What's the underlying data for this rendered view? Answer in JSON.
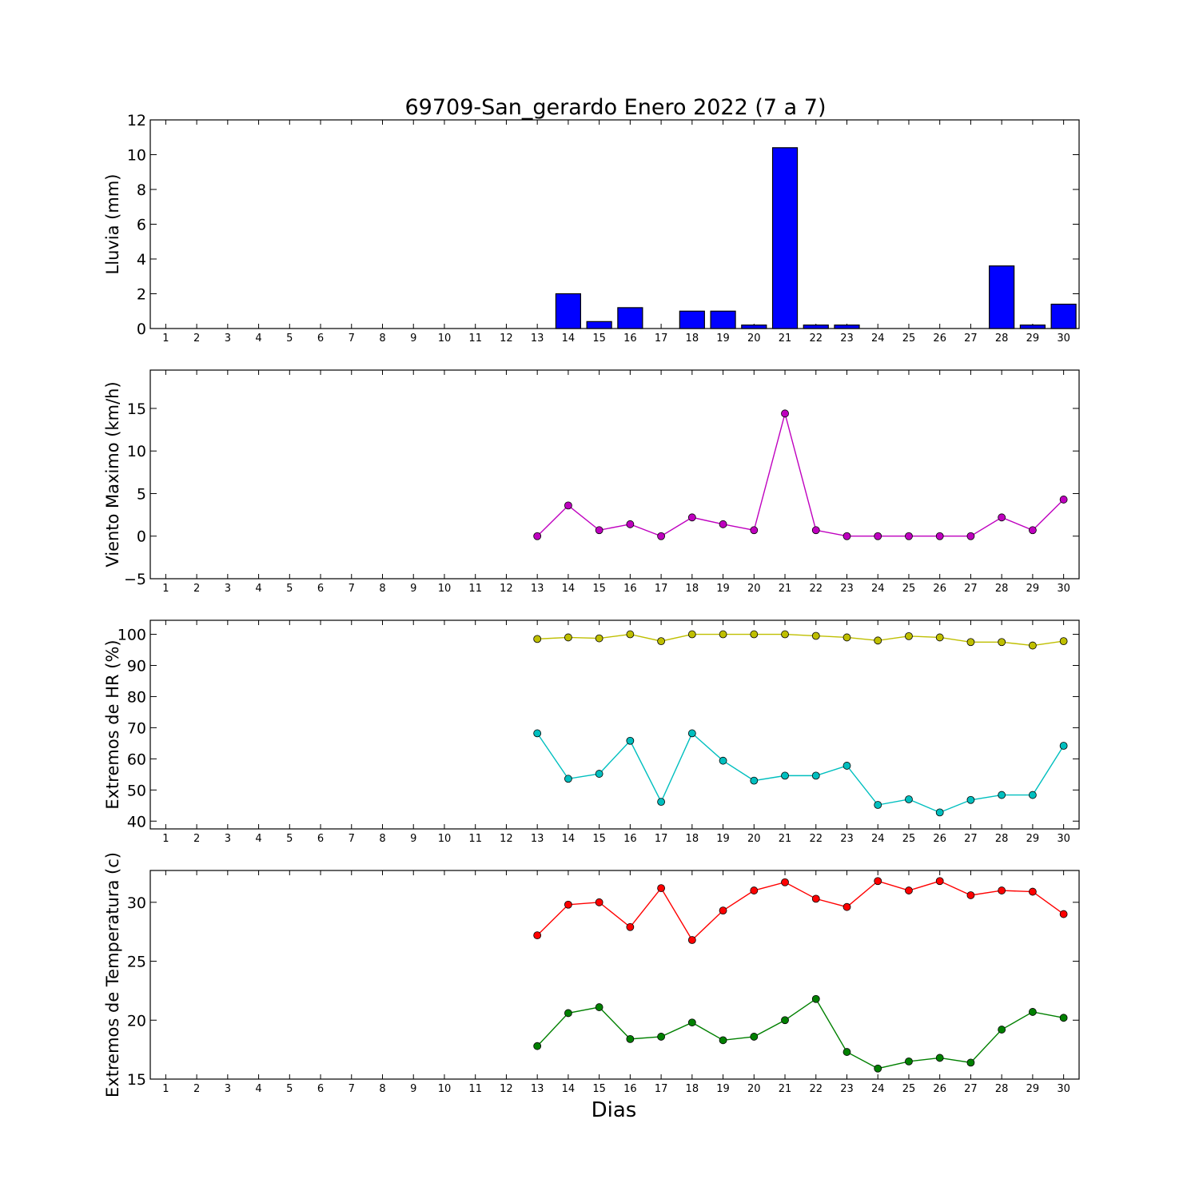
{
  "title": "69709-San_gerardo Enero 2022  (7 a 7)",
  "xlabel": "Dias",
  "colors": {
    "rain": "#0000ff",
    "wind": "#bf00bf",
    "hr_max": "#bfbf00",
    "hr_min": "#00bfbf",
    "temp_max": "#ff0000",
    "temp_min": "#008000"
  },
  "chart_data": [
    {
      "type": "bar",
      "ylabel": "Lluvia (mm)",
      "ylim": [
        0,
        12
      ],
      "yticks": [
        "0",
        "2",
        "4",
        "6",
        "8",
        "10",
        "12"
      ],
      "ytick_values": [
        0,
        2,
        4,
        6,
        8,
        10,
        12
      ],
      "categories": [
        "1",
        "2",
        "3",
        "4",
        "5",
        "6",
        "7",
        "8",
        "9",
        "10",
        "11",
        "12",
        "13",
        "14",
        "15",
        "16",
        "17",
        "18",
        "19",
        "20",
        "21",
        "22",
        "23",
        "24",
        "25",
        "26",
        "27",
        "28",
        "29",
        "30"
      ],
      "series": [
        {
          "values": [
            null,
            null,
            null,
            null,
            null,
            null,
            null,
            null,
            null,
            null,
            null,
            null,
            0,
            2.0,
            0.4,
            1.2,
            0,
            1.0,
            1.0,
            0.2,
            10.4,
            0.2,
            0.2,
            0,
            0,
            0,
            0,
            3.6,
            0.2,
            1.4
          ],
          "color": "#0000ff"
        }
      ]
    },
    {
      "type": "line",
      "ylabel": "Viento Maximo (km/h)",
      "ylim": [
        -5,
        19.5
      ],
      "yticks": [
        "−5",
        "0",
        "5",
        "10",
        "15"
      ],
      "ytick_values": [
        -5,
        0,
        5,
        10,
        15
      ],
      "categories": [
        "1",
        "2",
        "3",
        "4",
        "5",
        "6",
        "7",
        "8",
        "9",
        "10",
        "11",
        "12",
        "13",
        "14",
        "15",
        "16",
        "17",
        "18",
        "19",
        "20",
        "21",
        "22",
        "23",
        "24",
        "25",
        "26",
        "27",
        "28",
        "29",
        "30"
      ],
      "series": [
        {
          "values": [
            null,
            null,
            null,
            null,
            null,
            null,
            null,
            null,
            null,
            null,
            null,
            null,
            0,
            3.6,
            0.7,
            1.4,
            0,
            2.2,
            1.4,
            0.7,
            14.4,
            0.7,
            0,
            0,
            0,
            0,
            0,
            2.2,
            0.7,
            4.3
          ],
          "color": "#bf00bf"
        }
      ]
    },
    {
      "type": "line",
      "ylabel": "Extremos de HR (%)",
      "ylim": [
        37.5,
        104.5
      ],
      "yticks": [
        "40",
        "50",
        "60",
        "70",
        "80",
        "90",
        "100"
      ],
      "ytick_values": [
        40,
        50,
        60,
        70,
        80,
        90,
        100
      ],
      "categories": [
        "1",
        "2",
        "3",
        "4",
        "5",
        "6",
        "7",
        "8",
        "9",
        "10",
        "11",
        "12",
        "13",
        "14",
        "15",
        "16",
        "17",
        "18",
        "19",
        "20",
        "21",
        "22",
        "23",
        "24",
        "25",
        "26",
        "27",
        "28",
        "29",
        "30"
      ],
      "series": [
        {
          "values": [
            null,
            null,
            null,
            null,
            null,
            null,
            null,
            null,
            null,
            null,
            null,
            null,
            98.5,
            99.0,
            98.7,
            100,
            97.8,
            100,
            100,
            100,
            100,
            99.5,
            99.0,
            98.0,
            99.4,
            99.0,
            97.5,
            97.5,
            96.4,
            97.8
          ],
          "color": "#bfbf00"
        },
        {
          "values": [
            null,
            null,
            null,
            null,
            null,
            null,
            null,
            null,
            null,
            null,
            null,
            null,
            68.2,
            53.6,
            55.2,
            65.8,
            46.2,
            68.2,
            59.4,
            53.0,
            54.6,
            54.6,
            57.8,
            45.2,
            47.0,
            42.8,
            46.8,
            48.4,
            48.4,
            64.2
          ],
          "color": "#00bfbf"
        }
      ]
    },
    {
      "type": "line",
      "ylabel": "Extremos de Temperatura (c)",
      "ylim": [
        15,
        32.7
      ],
      "yticks": [
        "15",
        "20",
        "25",
        "30"
      ],
      "ytick_values": [
        15,
        20,
        25,
        30
      ],
      "categories": [
        "1",
        "2",
        "3",
        "4",
        "5",
        "6",
        "7",
        "8",
        "9",
        "10",
        "11",
        "12",
        "13",
        "14",
        "15",
        "16",
        "17",
        "18",
        "19",
        "20",
        "21",
        "22",
        "23",
        "24",
        "25",
        "26",
        "27",
        "28",
        "29",
        "30"
      ],
      "series": [
        {
          "values": [
            null,
            null,
            null,
            null,
            null,
            null,
            null,
            null,
            null,
            null,
            null,
            null,
            27.2,
            29.8,
            30.0,
            27.9,
            31.2,
            26.8,
            29.3,
            31.0,
            31.7,
            30.3,
            29.6,
            31.8,
            31.0,
            31.8,
            30.6,
            31.0,
            30.9,
            29.0
          ],
          "color": "#ff0000"
        },
        {
          "values": [
            null,
            null,
            null,
            null,
            null,
            null,
            null,
            null,
            null,
            null,
            null,
            null,
            17.8,
            20.6,
            21.1,
            18.4,
            18.6,
            19.8,
            18.3,
            18.6,
            20.0,
            21.8,
            17.3,
            15.9,
            16.5,
            16.8,
            16.4,
            19.2,
            20.7,
            20.2
          ],
          "color": "#008000"
        }
      ]
    }
  ]
}
